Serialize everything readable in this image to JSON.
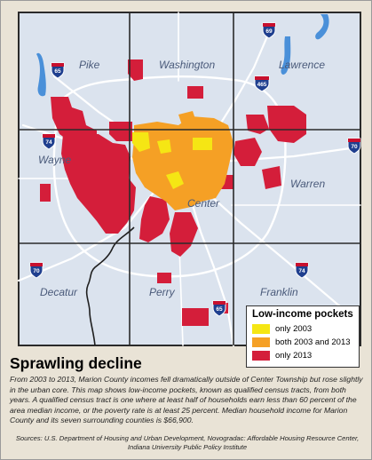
{
  "map": {
    "townships": [
      {
        "id": "pike",
        "name": "Pike"
      },
      {
        "id": "washington",
        "name": "Washington"
      },
      {
        "id": "lawrence",
        "name": "Lawrence"
      },
      {
        "id": "wayne",
        "name": "Wayne"
      },
      {
        "id": "center",
        "name": "Center"
      },
      {
        "id": "warren",
        "name": "Warren"
      },
      {
        "id": "decatur",
        "name": "Decatur"
      },
      {
        "id": "perry",
        "name": "Perry"
      },
      {
        "id": "franklin",
        "name": "Franklin"
      }
    ],
    "highway_shields": [
      "65",
      "69",
      "465",
      "74",
      "70",
      "70",
      "74",
      "65"
    ],
    "colors": {
      "land": "#e9e3d6",
      "county": "#dbe3ee",
      "township_border": "#2a2a2a",
      "road": "#ffffff",
      "water": "#4a90d9",
      "only_2003": "#f5e614",
      "both_2003_2013": "#f5a025",
      "only_2013": "#d41e3a"
    }
  },
  "legend": {
    "title": "Low-income pockets",
    "items": [
      {
        "label": "only 2003",
        "color": "#f5e614"
      },
      {
        "label": "both 2003 and 2013",
        "color": "#f5a025"
      },
      {
        "label": "only 2013",
        "color": "#d41e3a"
      }
    ]
  },
  "headline": "Sprawling decline",
  "body": "From 2003 to 2013, Marion County incomes fell dramatically outside of Center Township but rose slightly in the urban core. This map shows low-income pockets, known as qualified census tracts, from both years. A qualified census tract is one where at least half of households earn less than 60 percent of the area median income, or the poverty rate is at least 25 percent. Median household income for Marion County and its seven surrounding counties is $66,900.",
  "sources": "Sources: U.S. Department of Housing and Urban Development, Novogradac: Affordable Housing Resource Center, Indiana University Public Policy Institute"
}
